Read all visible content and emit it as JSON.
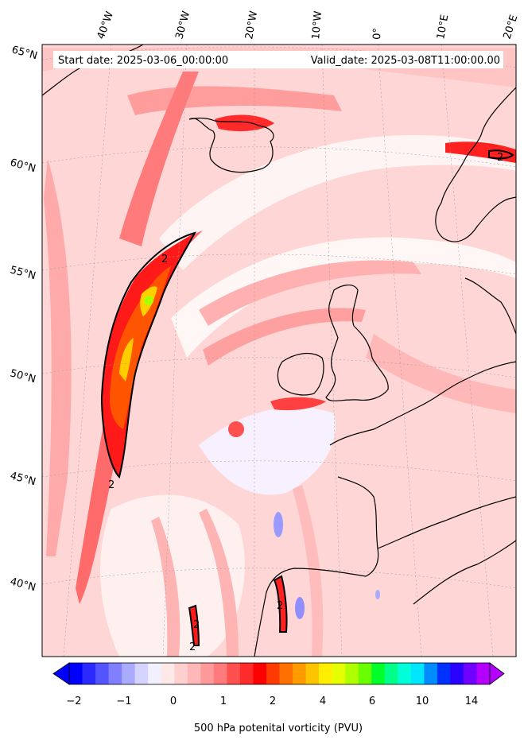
{
  "header": {
    "start_date": "Start date: 2025-03-06_00:00:00",
    "valid_date": "Valid_date: 2025-03-08T11:00:00.00"
  },
  "longitude_labels": [
    "40°W",
    "30°W",
    "20°W",
    "10°W",
    "0°",
    "10°E",
    "20°E"
  ],
  "latitude_labels": [
    "65°N",
    "60°N",
    "55°N",
    "50°N",
    "45°N",
    "40°N"
  ],
  "contour_labels": [
    "2",
    "2",
    "2",
    "2",
    "2",
    "2"
  ],
  "colorbar": {
    "label": "500 hPa potenital vorticity (PVU)",
    "ticks": [
      "−2",
      "−1",
      "0",
      "1",
      "2",
      "4",
      "6",
      "10",
      "14"
    ],
    "colors": [
      "#0000ff",
      "#2a2aff",
      "#5555ff",
      "#7f7fff",
      "#aaaaff",
      "#d4d4ff",
      "#f0f0ff",
      "#ffe8e8",
      "#ffd0d0",
      "#ffb8b8",
      "#ff9a9a",
      "#ff7a7a",
      "#ff5050",
      "#ff2a2a",
      "#ff0000",
      "#ff3a00",
      "#ff7000",
      "#ff9a00",
      "#ffc400",
      "#ffee00",
      "#e6ff00",
      "#b0ff00",
      "#6aff00",
      "#00ff2a",
      "#00ff8a",
      "#00ffd8",
      "#00e6ff",
      "#008cff",
      "#0032ff",
      "#2a00ff",
      "#7000ff",
      "#b400ff"
    ]
  },
  "map_colors": {
    "background": "#ffd6d6",
    "light_band": "#fff2f2",
    "medium_band": "#ffb0b0",
    "strong_band": "#ff6666",
    "intense": "#ff2020",
    "orange": "#ff8c00",
    "yellow": "#ffd000",
    "green": "#aaff00",
    "blue_negative": "#9999ff"
  }
}
